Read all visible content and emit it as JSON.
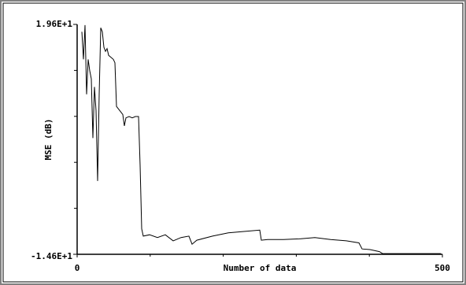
{
  "chart_data": {
    "type": "line",
    "xlabel": "Number of data",
    "ylabel": "MSE (dB)",
    "xlim": [
      0,
      500
    ],
    "ylim": [
      -14.6,
      19.6
    ],
    "xticks": [
      0,
      500
    ],
    "yticks": [
      {
        "value": 19.6,
        "label": "1.96E+1"
      },
      {
        "value": -14.6,
        "label": "-1.46E+1"
      }
    ],
    "xminorticks": [
      100,
      200,
      300,
      400
    ],
    "yminorticks": [
      12.76,
      5.92,
      -0.92,
      -7.76
    ],
    "grid": false,
    "series": [
      {
        "color": "#000000",
        "x": [
          6.5,
          8.6,
          10.8,
          12.9,
          15.1,
          17.2,
          19.4,
          21.6,
          23.7,
          25.9,
          28.0,
          30.2,
          32.3,
          34.5,
          36.6,
          38.8,
          40.9,
          43.1,
          45.3,
          49.6,
          51.7,
          53.9,
          58.2,
          62.5,
          64.7,
          66.8,
          71.1,
          75.4,
          79.7,
          84.1,
          86.2,
          88.4,
          90.5,
          99.1,
          109.9,
          120.7,
          131.5,
          142.2,
          153.0,
          157.3,
          163.8,
          185.3,
          206.9,
          228.5,
          250.0,
          252.2,
          260.8,
          282.3,
          303.9,
          325.4,
          347.0,
          368.5,
          385.8,
          390.1,
          400.9,
          413.8,
          418.1,
          433.2,
          497.8
        ],
        "values": [
          18.5,
          14.4,
          19.5,
          9.2,
          14.4,
          12.7,
          11.5,
          2.7,
          10.3,
          6.8,
          -3.7,
          9.2,
          19.1,
          18.5,
          16.2,
          15.6,
          16.0,
          15.0,
          14.8,
          14.4,
          13.9,
          7.4,
          6.8,
          6.2,
          4.5,
          5.7,
          5.9,
          5.7,
          5.9,
          5.9,
          -1.4,
          -10.8,
          -11.9,
          -11.7,
          -12.1,
          -11.7,
          -12.6,
          -12.1,
          -11.9,
          -13.1,
          -12.5,
          -11.9,
          -11.4,
          -11.2,
          -11.0,
          -12.5,
          -12.4,
          -12.4,
          -12.3,
          -12.1,
          -12.4,
          -12.6,
          -12.9,
          -13.8,
          -13.9,
          -14.2,
          -14.5,
          -14.5,
          -14.5
        ]
      }
    ]
  }
}
